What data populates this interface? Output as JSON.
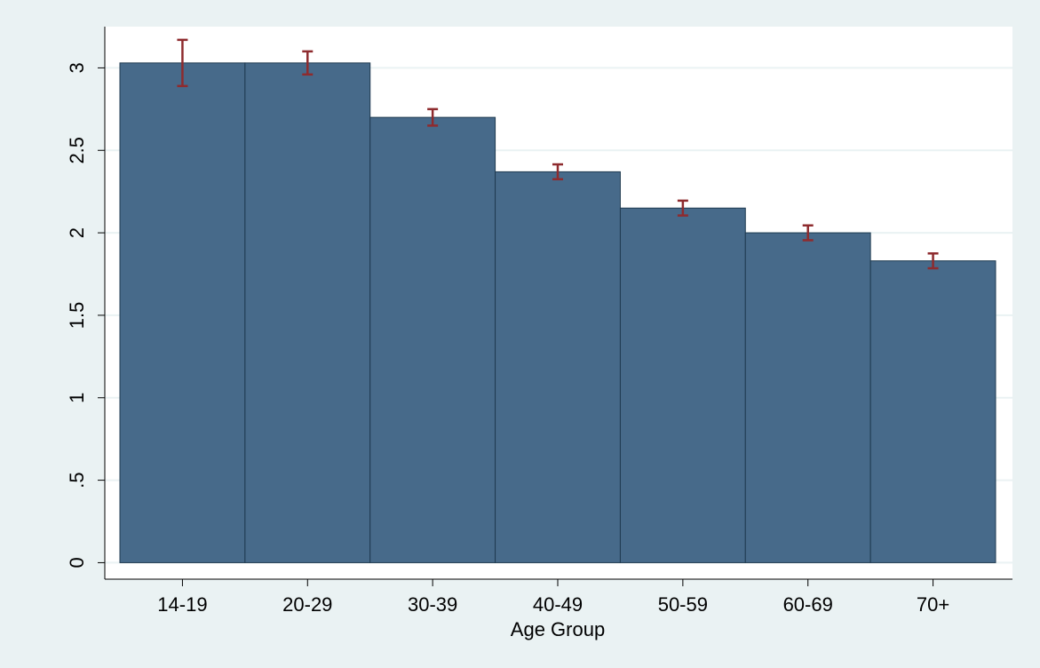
{
  "chart_data": {
    "type": "bar",
    "xlabel": "Age Group",
    "categories": [
      "14-19",
      "20-29",
      "30-39",
      "40-49",
      "50-59",
      "60-69",
      "70+"
    ],
    "values": [
      3.03,
      3.03,
      2.7,
      2.37,
      2.15,
      2.0,
      1.83
    ],
    "errors": [
      0.14,
      0.07,
      0.05,
      0.045,
      0.045,
      0.045,
      0.045
    ],
    "color": "#476a8a",
    "error_color": "#8e2b2e",
    "ylim": [
      -0.1,
      3.25
    ],
    "yticks": [
      0,
      {
        "value": 0.5,
        "label": ".5"
      },
      1,
      1.5,
      2,
      2.5,
      3
    ],
    "grid": true
  }
}
